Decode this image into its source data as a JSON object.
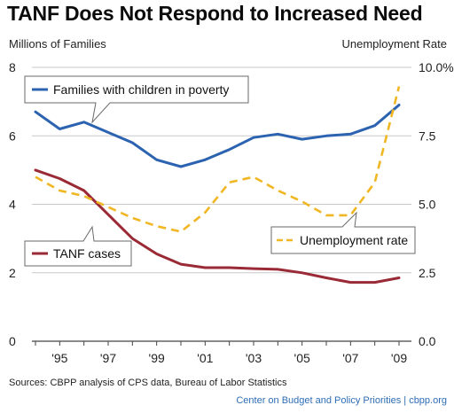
{
  "title": "TANF Does Not Respond to Increased Need",
  "left_axis_title": "Millions of Families",
  "right_axis_title": "Unemployment Rate",
  "source": "Sources: CBPP analysis of CPS data, Bureau of Labor Statistics",
  "footer": "Center on Budget and Policy Priorities | cbpp.org",
  "colors": {
    "poverty": "#2b63b0",
    "tanf": "#9a2a36",
    "unemployment": "#f0b623",
    "grid": "#c9c9c9"
  },
  "chart_data": {
    "type": "line",
    "x": [
      1994,
      1995,
      1996,
      1997,
      1998,
      1999,
      2000,
      2001,
      2002,
      2003,
      2004,
      2005,
      2006,
      2007,
      2008,
      2009
    ],
    "x_tick_labels": [
      "'95",
      "'97",
      "'99",
      "'01",
      "'03",
      "'05",
      "'07",
      "'09"
    ],
    "x_tick_values": [
      1995,
      1997,
      1999,
      2001,
      2003,
      2005,
      2007,
      2009
    ],
    "y_left": {
      "label": "Millions of Families",
      "lim": [
        0,
        8
      ],
      "ticks": [
        0,
        2,
        4,
        6,
        8
      ],
      "tick_labels": [
        "0",
        "2",
        "4",
        "6",
        "8"
      ]
    },
    "y_right": {
      "label": "Unemployment Rate",
      "lim": [
        0,
        10
      ],
      "ticks": [
        0,
        2.5,
        5,
        7.5,
        10
      ],
      "tick_labels": [
        "0.0",
        "2.5",
        "5.0",
        "7.5",
        "10.0%"
      ]
    },
    "grid": true,
    "series": [
      {
        "name": "Families with children in poverty",
        "axis": "left",
        "style": "solid",
        "color": "#2b63b0",
        "values": [
          6.7,
          6.2,
          6.4,
          6.1,
          5.8,
          5.3,
          5.1,
          5.3,
          5.6,
          5.95,
          6.05,
          5.9,
          6.0,
          6.05,
          6.3,
          6.9
        ]
      },
      {
        "name": "TANF cases",
        "axis": "left",
        "style": "solid",
        "color": "#9a2a36",
        "values": [
          5.0,
          4.75,
          4.4,
          3.7,
          3.0,
          2.55,
          2.25,
          2.15,
          2.15,
          2.12,
          2.1,
          2.0,
          1.85,
          1.72,
          1.72,
          1.85
        ]
      },
      {
        "name": "Unemployment rate",
        "axis": "right",
        "style": "dashed",
        "color": "#f0b623",
        "values": [
          6.0,
          5.5,
          5.3,
          4.9,
          4.5,
          4.2,
          4.0,
          4.7,
          5.8,
          6.0,
          5.5,
          5.1,
          4.6,
          4.6,
          5.8,
          9.3
        ]
      }
    ],
    "legend": [
      {
        "label": "Families with children in poverty",
        "placement": "top-left"
      },
      {
        "label": "TANF cases",
        "placement": "lower-left"
      },
      {
        "label": "Unemployment rate",
        "placement": "lower-right"
      }
    ]
  }
}
